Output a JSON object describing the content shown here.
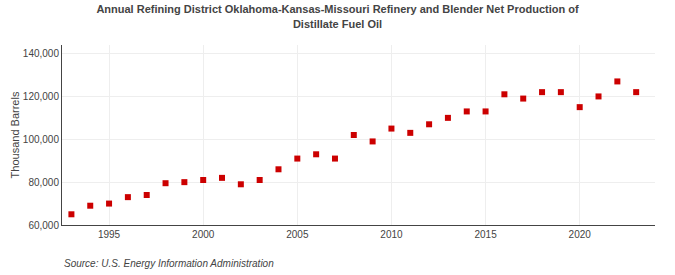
{
  "chart_data": {
    "type": "scatter",
    "title": "Annual Refining District Oklahoma-Kansas-Missouri Refinery and Blender Net Production of\nDistillate Fuel Oil",
    "ylabel": "Thousand Barrels",
    "annotations": [
      "Source: U.S. Energy Information Administration"
    ],
    "x": [
      1993,
      1994,
      1995,
      1996,
      1997,
      1998,
      1999,
      2000,
      2001,
      2002,
      2003,
      2004,
      2005,
      2006,
      2007,
      2008,
      2009,
      2010,
      2011,
      2012,
      2013,
      2014,
      2015,
      2016,
      2017,
      2018,
      2019,
      2020,
      2021,
      2022,
      2023
    ],
    "values": [
      65000,
      69000,
      70000,
      73000,
      74000,
      79500,
      80000,
      81000,
      82000,
      79000,
      81000,
      86000,
      91000,
      93000,
      91000,
      102000,
      99000,
      105000,
      103000,
      107000,
      110000,
      113000,
      113000,
      121000,
      119000,
      122000,
      122000,
      115000,
      120000,
      127000,
      122000
    ],
    "color": "#cc0000",
    "marker": "square",
    "xlim": [
      1992.5,
      2024
    ],
    "xticks": [
      1995,
      2000,
      2005,
      2010,
      2015,
      2020
    ],
    "ylim": [
      60000,
      144000
    ],
    "yticks": [
      {
        "value": 60000,
        "label": "60,000"
      },
      {
        "value": 80000,
        "label": "80,000"
      },
      {
        "value": 100000,
        "label": "100,000"
      },
      {
        "value": 120000,
        "label": "120,000"
      },
      {
        "value": 140000,
        "label": "140,000"
      }
    ],
    "grid": true
  }
}
